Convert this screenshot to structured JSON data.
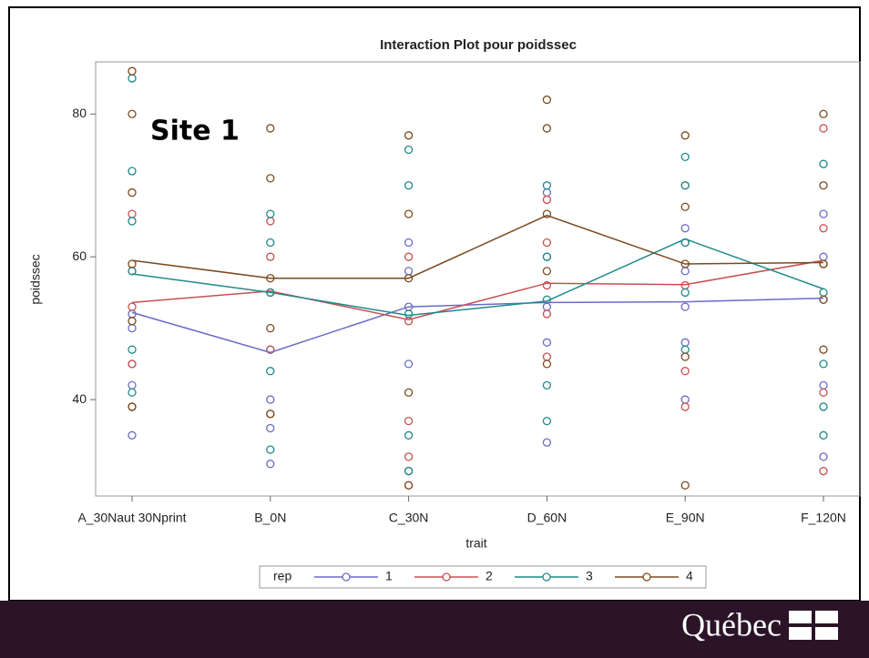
{
  "chart_data": {
    "type": "interaction",
    "title": "Interaction Plot pour poidssec",
    "annotation": "Site 1",
    "x_label": "trait",
    "y_label": "poidssec",
    "categories": [
      "A_30Naut 30Nprint",
      "B_0N",
      "C_30N",
      "D_60N",
      "E_90N",
      "F_120N"
    ],
    "ylim": [
      26.5,
      87.3
    ],
    "yticks": [
      40,
      60,
      80
    ],
    "legend_title": "rep",
    "legend_position": "bottom",
    "series": [
      {
        "name": "1",
        "color": "#6b6bc8",
        "values": [
          52.2,
          46.6,
          53,
          53.6,
          53.7,
          54.2
        ],
        "points": [
          [
            35,
            52,
            50,
            45,
            42
          ],
          [
            31,
            36,
            40,
            47,
            55
          ],
          [
            30,
            45,
            53,
            58,
            62
          ],
          [
            34,
            48,
            53,
            60,
            69
          ],
          [
            40,
            48,
            53,
            58,
            64
          ],
          [
            32,
            42,
            54,
            60,
            66
          ]
        ]
      },
      {
        "name": "2",
        "color": "#c85050",
        "values": [
          53.6,
          55.2,
          51.2,
          56.3,
          56.1,
          59.5
        ],
        "points": [
          [
            39,
            45,
            53,
            58,
            66
          ],
          [
            38,
            47,
            55,
            60,
            65
          ],
          [
            28,
            32,
            37,
            51,
            60
          ],
          [
            46,
            52,
            56,
            62,
            68
          ],
          [
            39,
            44,
            56,
            62,
            70
          ],
          [
            30,
            41,
            59,
            64,
            78
          ]
        ]
      },
      {
        "name": "3",
        "color": "#1f8a8a",
        "values": [
          57.6,
          55.0,
          51.8,
          53.8,
          62.5,
          55.5
        ],
        "points": [
          [
            41,
            47,
            58,
            65,
            72,
            85
          ],
          [
            33,
            44,
            55,
            62,
            66
          ],
          [
            30,
            35,
            52,
            70,
            75
          ],
          [
            37,
            42,
            54,
            60,
            70
          ],
          [
            47,
            55,
            62,
            70,
            74
          ],
          [
            35,
            39,
            45,
            55,
            73
          ]
        ]
      },
      {
        "name": "4",
        "color": "#7a4a1e",
        "values": [
          59.5,
          57,
          57,
          65.8,
          59,
          59.2
        ],
        "points": [
          [
            39,
            51,
            59,
            69,
            80,
            86
          ],
          [
            38,
            50,
            57,
            71,
            78
          ],
          [
            28,
            41,
            57,
            66,
            77
          ],
          [
            45,
            58,
            66,
            78,
            82
          ],
          [
            28,
            46,
            59,
            67,
            77
          ],
          [
            47,
            54,
            59,
            70,
            80
          ]
        ]
      }
    ]
  },
  "footer": {
    "brand": "Québec"
  }
}
